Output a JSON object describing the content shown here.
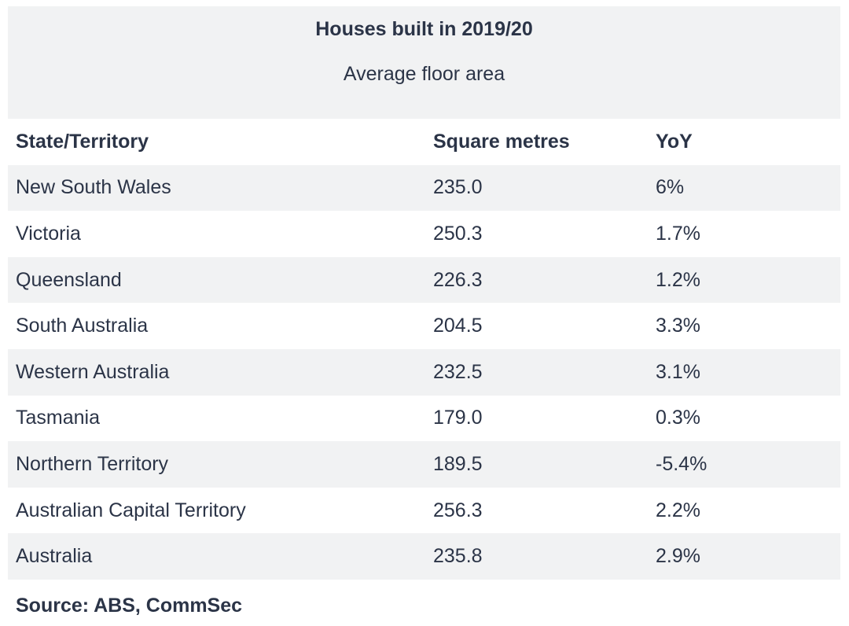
{
  "title": "Houses built in 2019/20",
  "subtitle": "Average floor area",
  "headers": {
    "state": "State/Territory",
    "sqm": "Square metres",
    "yoy": "YoY"
  },
  "rows": [
    {
      "state": "New South Wales",
      "sqm": "235.0",
      "yoy": "6%"
    },
    {
      "state": "Victoria",
      "sqm": "250.3",
      "yoy": "1.7%"
    },
    {
      "state": "Queensland",
      "sqm": "226.3",
      "yoy": "1.2%"
    },
    {
      "state": "South Australia",
      "sqm": "204.5",
      "yoy": "3.3%"
    },
    {
      "state": "Western Australia",
      "sqm": "232.5",
      "yoy": "3.1%"
    },
    {
      "state": "Tasmania",
      "sqm": "179.0",
      "yoy": "0.3%"
    },
    {
      "state": "Northern Territory",
      "sqm": "189.5",
      "yoy": "-5.4%"
    },
    {
      "state": "Australian Capital Territory",
      "sqm": "256.3",
      "yoy": "2.2%"
    },
    {
      "state": "Australia",
      "sqm": "235.8",
      "yoy": "2.9%"
    }
  ],
  "source": "Source: ABS, CommSec",
  "colors": {
    "shade": "#f1f2f3",
    "text": "#2b3447"
  }
}
